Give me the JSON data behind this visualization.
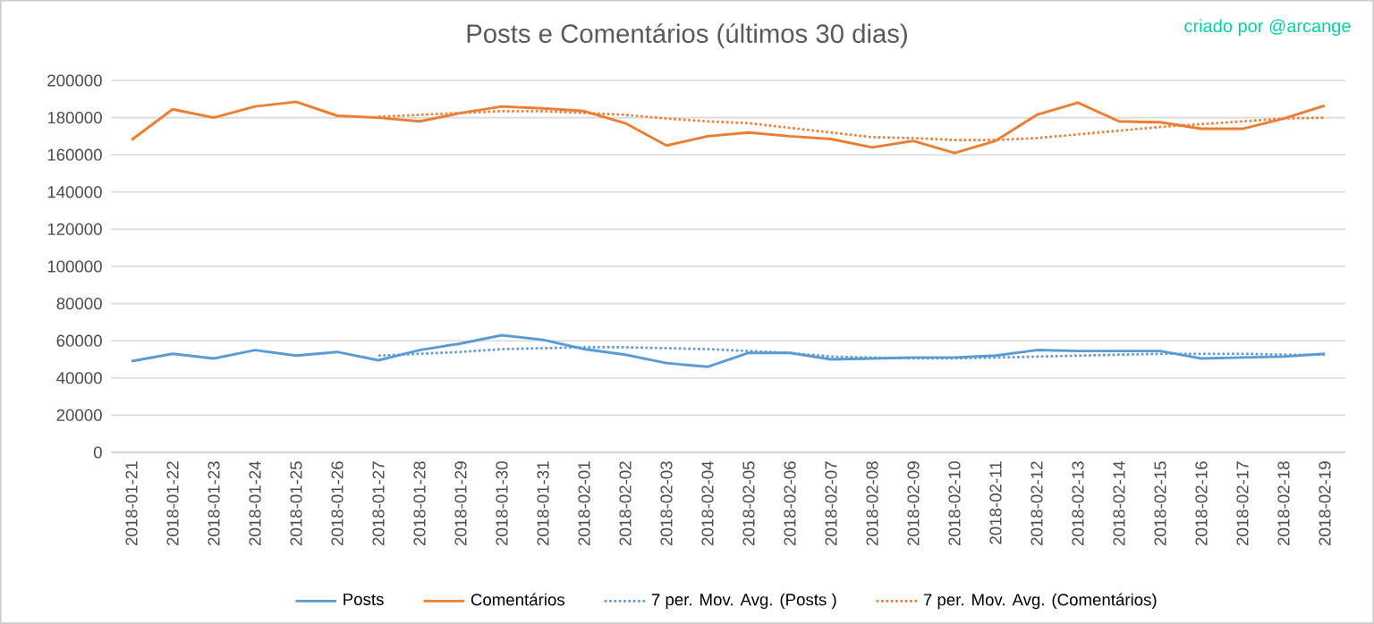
{
  "chart_data": {
    "type": "line",
    "title": "Posts e Comentários  (últimos 30 dias)",
    "annotations": [
      "criado por @arcange"
    ],
    "categories": [
      "2018-01-21",
      "2018-01-22",
      "2018-01-23",
      "2018-01-24",
      "2018-01-25",
      "2018-01-26",
      "2018-01-27",
      "2018-01-28",
      "2018-01-29",
      "2018-01-30",
      "2018-01-31",
      "2018-02-01",
      "2018-02-02",
      "2018-02-03",
      "2018-02-04",
      "2018-02-05",
      "2018-02-06",
      "2018-02-07",
      "2018-02-08",
      "2018-02-09",
      "2018-02-10",
      "2018-02-11",
      "2018-02-12",
      "2018-02-13",
      "2018-02-14",
      "2018-02-15",
      "2018-02-16",
      "2018-02-17",
      "2018-02-18",
      "2018-02-19"
    ],
    "series": [
      {
        "name": "Posts",
        "color": "#5b9bd5",
        "line_style": "solid",
        "values": [
          49000,
          53000,
          50500,
          55000,
          52000,
          54000,
          49500,
          55000,
          58500,
          63000,
          60500,
          55500,
          52500,
          48000,
          46000,
          53500,
          53500,
          50000,
          50500,
          51000,
          51000,
          52000,
          55000,
          54500,
          54500,
          54500,
          50500,
          51000,
          51500,
          53000
        ]
      },
      {
        "name": "Comentários",
        "color": "#ed7d31",
        "line_style": "solid",
        "values": [
          168000,
          184500,
          180000,
          186000,
          188500,
          181000,
          180000,
          178000,
          182500,
          186000,
          185000,
          183500,
          177000,
          165000,
          170000,
          172000,
          170000,
          168500,
          164000,
          167500,
          161000,
          167500,
          181500,
          188000,
          178000,
          177500,
          174000,
          174000,
          179500,
          186500
        ]
      },
      {
        "name": "7 per. Mov. Avg. (Posts )",
        "color": "#5b9bd5",
        "line_style": "dotted",
        "values": [
          null,
          null,
          null,
          null,
          null,
          null,
          52000,
          53000,
          54000,
          55500,
          56000,
          56500,
          56500,
          56000,
          55500,
          54500,
          53500,
          51500,
          51000,
          50500,
          50500,
          51000,
          51500,
          52000,
          52500,
          53000,
          53000,
          53000,
          52500,
          52500
        ]
      },
      {
        "name": "7 per. Mov. Avg. (Comentários)",
        "color": "#ed7d31",
        "line_style": "dotted",
        "values": [
          null,
          null,
          null,
          null,
          null,
          null,
          180500,
          181500,
          182500,
          183500,
          183500,
          182500,
          181500,
          179500,
          178000,
          177000,
          174500,
          172000,
          169500,
          169000,
          168000,
          168000,
          169000,
          171000,
          173000,
          175000,
          176500,
          178000,
          179500,
          180000
        ]
      }
    ],
    "ylim": [
      0,
      200000
    ],
    "yticks": [
      0,
      20000,
      40000,
      60000,
      80000,
      100000,
      120000,
      140000,
      160000,
      180000,
      200000
    ],
    "grid": "y",
    "legend": "bottom",
    "marker": "none"
  }
}
